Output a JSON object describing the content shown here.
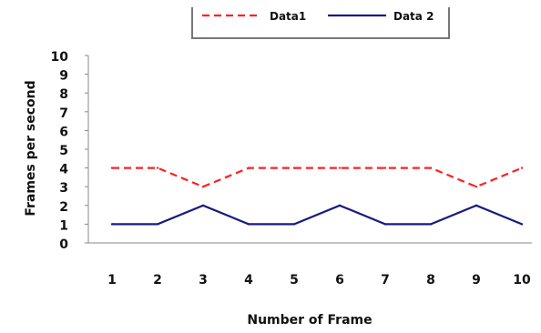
{
  "chart_data": {
    "type": "line",
    "title": "",
    "xlabel": "Number of Frame",
    "ylabel": "Frames per second",
    "categories": [
      "1",
      "2",
      "3",
      "4",
      "5",
      "6",
      "7",
      "8",
      "9",
      "10"
    ],
    "ylim": [
      0,
      10
    ],
    "yticks": [
      "0",
      "1",
      "2",
      "3",
      "4",
      "5",
      "6",
      "7",
      "8",
      "9",
      "10"
    ],
    "grid": false,
    "legend_position": "top",
    "series": [
      {
        "name": "Data1",
        "values": [
          4,
          4,
          3,
          4,
          4,
          4,
          4,
          4,
          3,
          4
        ],
        "color": "#ff2020",
        "style": "dashed"
      },
      {
        "name": "Data 2",
        "values": [
          1,
          1,
          2,
          1,
          1,
          2,
          1,
          1,
          2,
          1
        ],
        "color": "#1a1a80",
        "style": "solid"
      }
    ]
  }
}
